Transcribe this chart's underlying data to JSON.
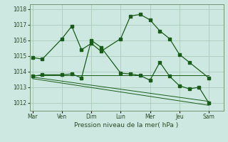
{
  "bg_color": "#cce8e0",
  "grid_color": "#aaccbb",
  "line_color": "#1a5c1a",
  "xlabel": "Pression niveau de la mer( hPa )",
  "ylim": [
    1011.5,
    1018.3
  ],
  "yticks": [
    1012,
    1013,
    1014,
    1015,
    1016,
    1017,
    1018
  ],
  "x_labels": [
    "Mar",
    "Ven",
    "Dim",
    "Lun",
    "Mer",
    "Jeu",
    "Sam"
  ],
  "x_positions": [
    0,
    3,
    6,
    9,
    12,
    15,
    18
  ],
  "xlim": [
    -0.3,
    19.5
  ],
  "series1": {
    "x": [
      0,
      1,
      3,
      4,
      5,
      6,
      7,
      9,
      10,
      11,
      12,
      13,
      14,
      15,
      16,
      18
    ],
    "y": [
      1014.9,
      1014.8,
      1016.1,
      1016.9,
      1015.4,
      1015.8,
      1015.3,
      1016.1,
      1017.55,
      1017.65,
      1017.3,
      1016.6,
      1016.1,
      1015.1,
      1014.6,
      1013.6
    ]
  },
  "series2": {
    "x": [
      0,
      1,
      3,
      4,
      5,
      6,
      7,
      9,
      10,
      11,
      12,
      13,
      14,
      15,
      16,
      17,
      18
    ],
    "y": [
      1013.7,
      1013.8,
      1013.8,
      1013.85,
      1013.6,
      1016.0,
      1015.55,
      1013.9,
      1013.85,
      1013.75,
      1013.45,
      1014.6,
      1013.7,
      1013.1,
      1012.9,
      1013.0,
      1012.0
    ]
  },
  "linear1": {
    "x": [
      0,
      18
    ],
    "y": [
      1013.75,
      1013.75
    ]
  },
  "linear2": {
    "x": [
      0,
      18
    ],
    "y": [
      1013.65,
      1012.1
    ]
  },
  "linear3": {
    "x": [
      0,
      18
    ],
    "y": [
      1013.55,
      1011.85
    ]
  }
}
